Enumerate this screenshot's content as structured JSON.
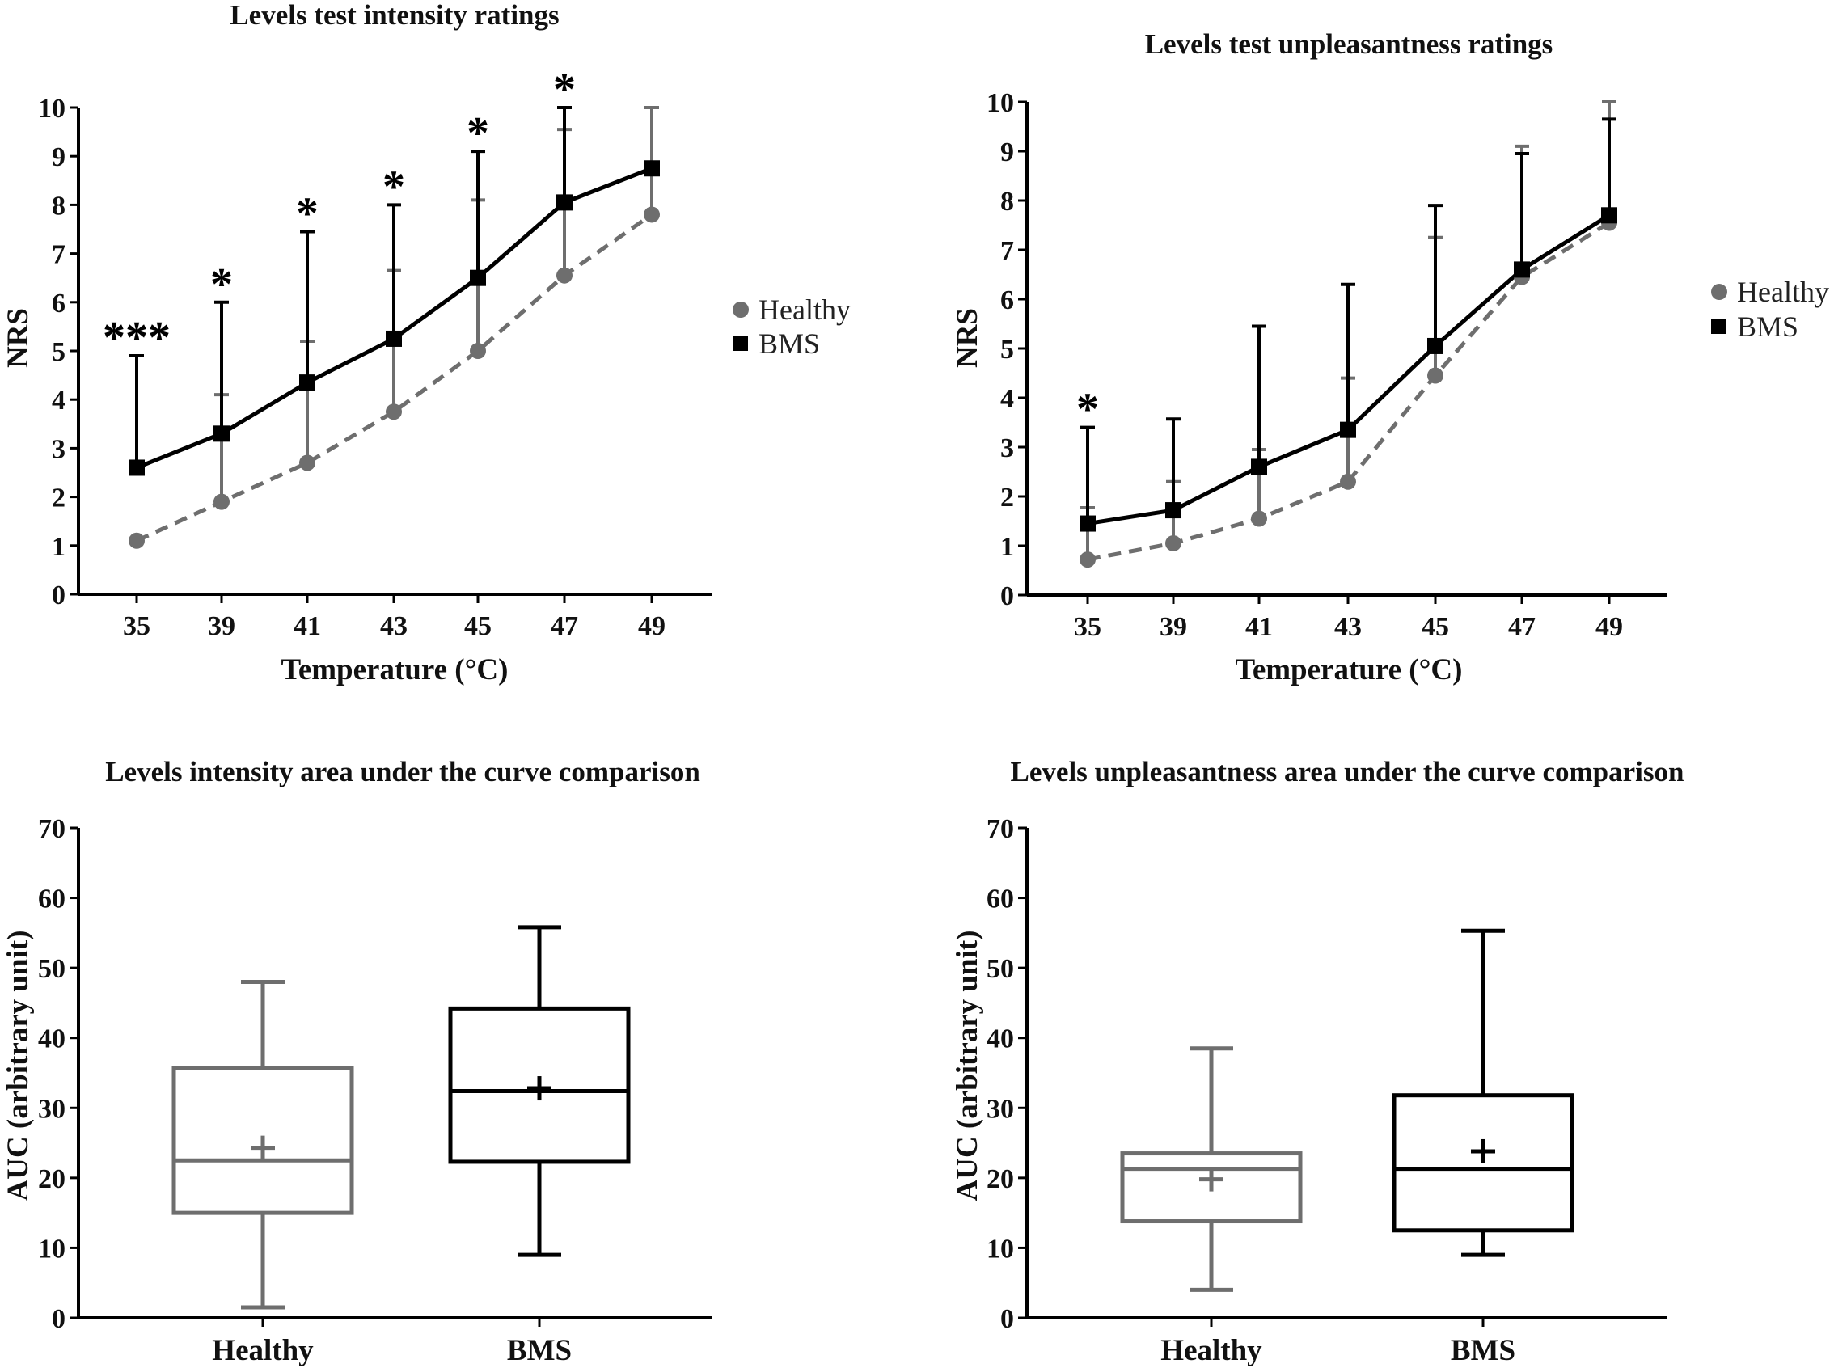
{
  "chart_data": [
    {
      "type": "line",
      "title": "Levels test intensity ratings",
      "xlabel": "Temperature (°C)",
      "ylabel": "NRS",
      "categories": [
        "35",
        "39",
        "41",
        "43",
        "45",
        "47",
        "49"
      ],
      "ylim": [
        0,
        10
      ],
      "yticks": [
        "0",
        "1",
        "2",
        "3",
        "4",
        "5",
        "6",
        "7",
        "8",
        "9",
        "10"
      ],
      "series": [
        {
          "name": "Healthy",
          "marker": "circle",
          "color": "#6e6e6e",
          "dashed": true,
          "values": [
            1.1,
            1.9,
            2.7,
            3.75,
            5.0,
            6.55,
            7.8
          ],
          "sd": [
            0,
            2.2,
            2.5,
            2.9,
            3.1,
            3.0,
            2.2
          ]
        },
        {
          "name": "BMS",
          "marker": "square",
          "color": "#000000",
          "dashed": false,
          "values": [
            2.6,
            3.3,
            4.35,
            5.25,
            6.5,
            8.05,
            8.75
          ],
          "sd": [
            2.3,
            2.7,
            3.1,
            2.75,
            2.6,
            1.95,
            0
          ]
        }
      ],
      "significance": [
        "***",
        "*",
        "*",
        "*",
        "*",
        "*",
        ""
      ]
    },
    {
      "type": "line",
      "title": "Levels test unpleasantness ratings",
      "xlabel": "Temperature (°C)",
      "ylabel": "NRS",
      "categories": [
        "35",
        "39",
        "41",
        "43",
        "45",
        "47",
        "49"
      ],
      "ylim": [
        0,
        10
      ],
      "yticks": [
        "0",
        "1",
        "2",
        "3",
        "4",
        "5",
        "6",
        "7",
        "8",
        "9",
        "10"
      ],
      "series": [
        {
          "name": "Healthy",
          "marker": "circle",
          "color": "#6e6e6e",
          "dashed": true,
          "values": [
            0.72,
            1.05,
            1.55,
            2.3,
            4.45,
            6.45,
            7.55
          ],
          "sd": [
            1.05,
            1.25,
            1.4,
            2.1,
            2.8,
            2.65,
            2.45
          ]
        },
        {
          "name": "BMS",
          "marker": "square",
          "color": "#000000",
          "dashed": false,
          "values": [
            1.45,
            1.72,
            2.6,
            3.35,
            5.05,
            6.6,
            7.7
          ],
          "sd": [
            1.95,
            1.85,
            2.85,
            2.95,
            2.85,
            2.35,
            1.95
          ]
        }
      ],
      "significance": [
        "*",
        "",
        "",
        "",
        "",
        "",
        ""
      ]
    },
    {
      "type": "box",
      "title": "Levels intensity area under the curve comparison",
      "xlabel": "",
      "ylabel": "AUC (arbitrary unit)",
      "categories": [
        "Healthy",
        "BMS"
      ],
      "ylim": [
        0,
        70
      ],
      "yticks": [
        "0",
        "10",
        "20",
        "30",
        "40",
        "50",
        "60",
        "70"
      ],
      "boxes": [
        {
          "name": "Healthy",
          "color": "#6e6e6e",
          "min": 1.5,
          "q1": 15,
          "median": 22.5,
          "q3": 35.7,
          "max": 48,
          "mean": 24.3
        },
        {
          "name": "BMS",
          "color": "#000000",
          "min": 9,
          "q1": 22.3,
          "median": 32.4,
          "q3": 44.2,
          "max": 55.8,
          "mean": 32.8
        }
      ]
    },
    {
      "type": "box",
      "title": "Levels unpleasantness area under the curve comparison",
      "xlabel": "",
      "ylabel": "AUC (arbitrary unit)",
      "categories": [
        "Healthy",
        "BMS"
      ],
      "ylim": [
        0,
        70
      ],
      "yticks": [
        "0",
        "10",
        "20",
        "30",
        "40",
        "50",
        "60",
        "70"
      ],
      "boxes": [
        {
          "name": "Healthy",
          "color": "#6e6e6e",
          "min": 4,
          "q1": 13.8,
          "median": 21.3,
          "q3": 23.5,
          "max": 38.5,
          "mean": 19.8
        },
        {
          "name": "BMS",
          "color": "#000000",
          "min": 9,
          "q1": 12.5,
          "median": 21.3,
          "q3": 31.8,
          "max": 55.3,
          "mean": 23.8
        }
      ]
    }
  ],
  "legend": {
    "healthy": "Healthy",
    "bms": "BMS"
  }
}
